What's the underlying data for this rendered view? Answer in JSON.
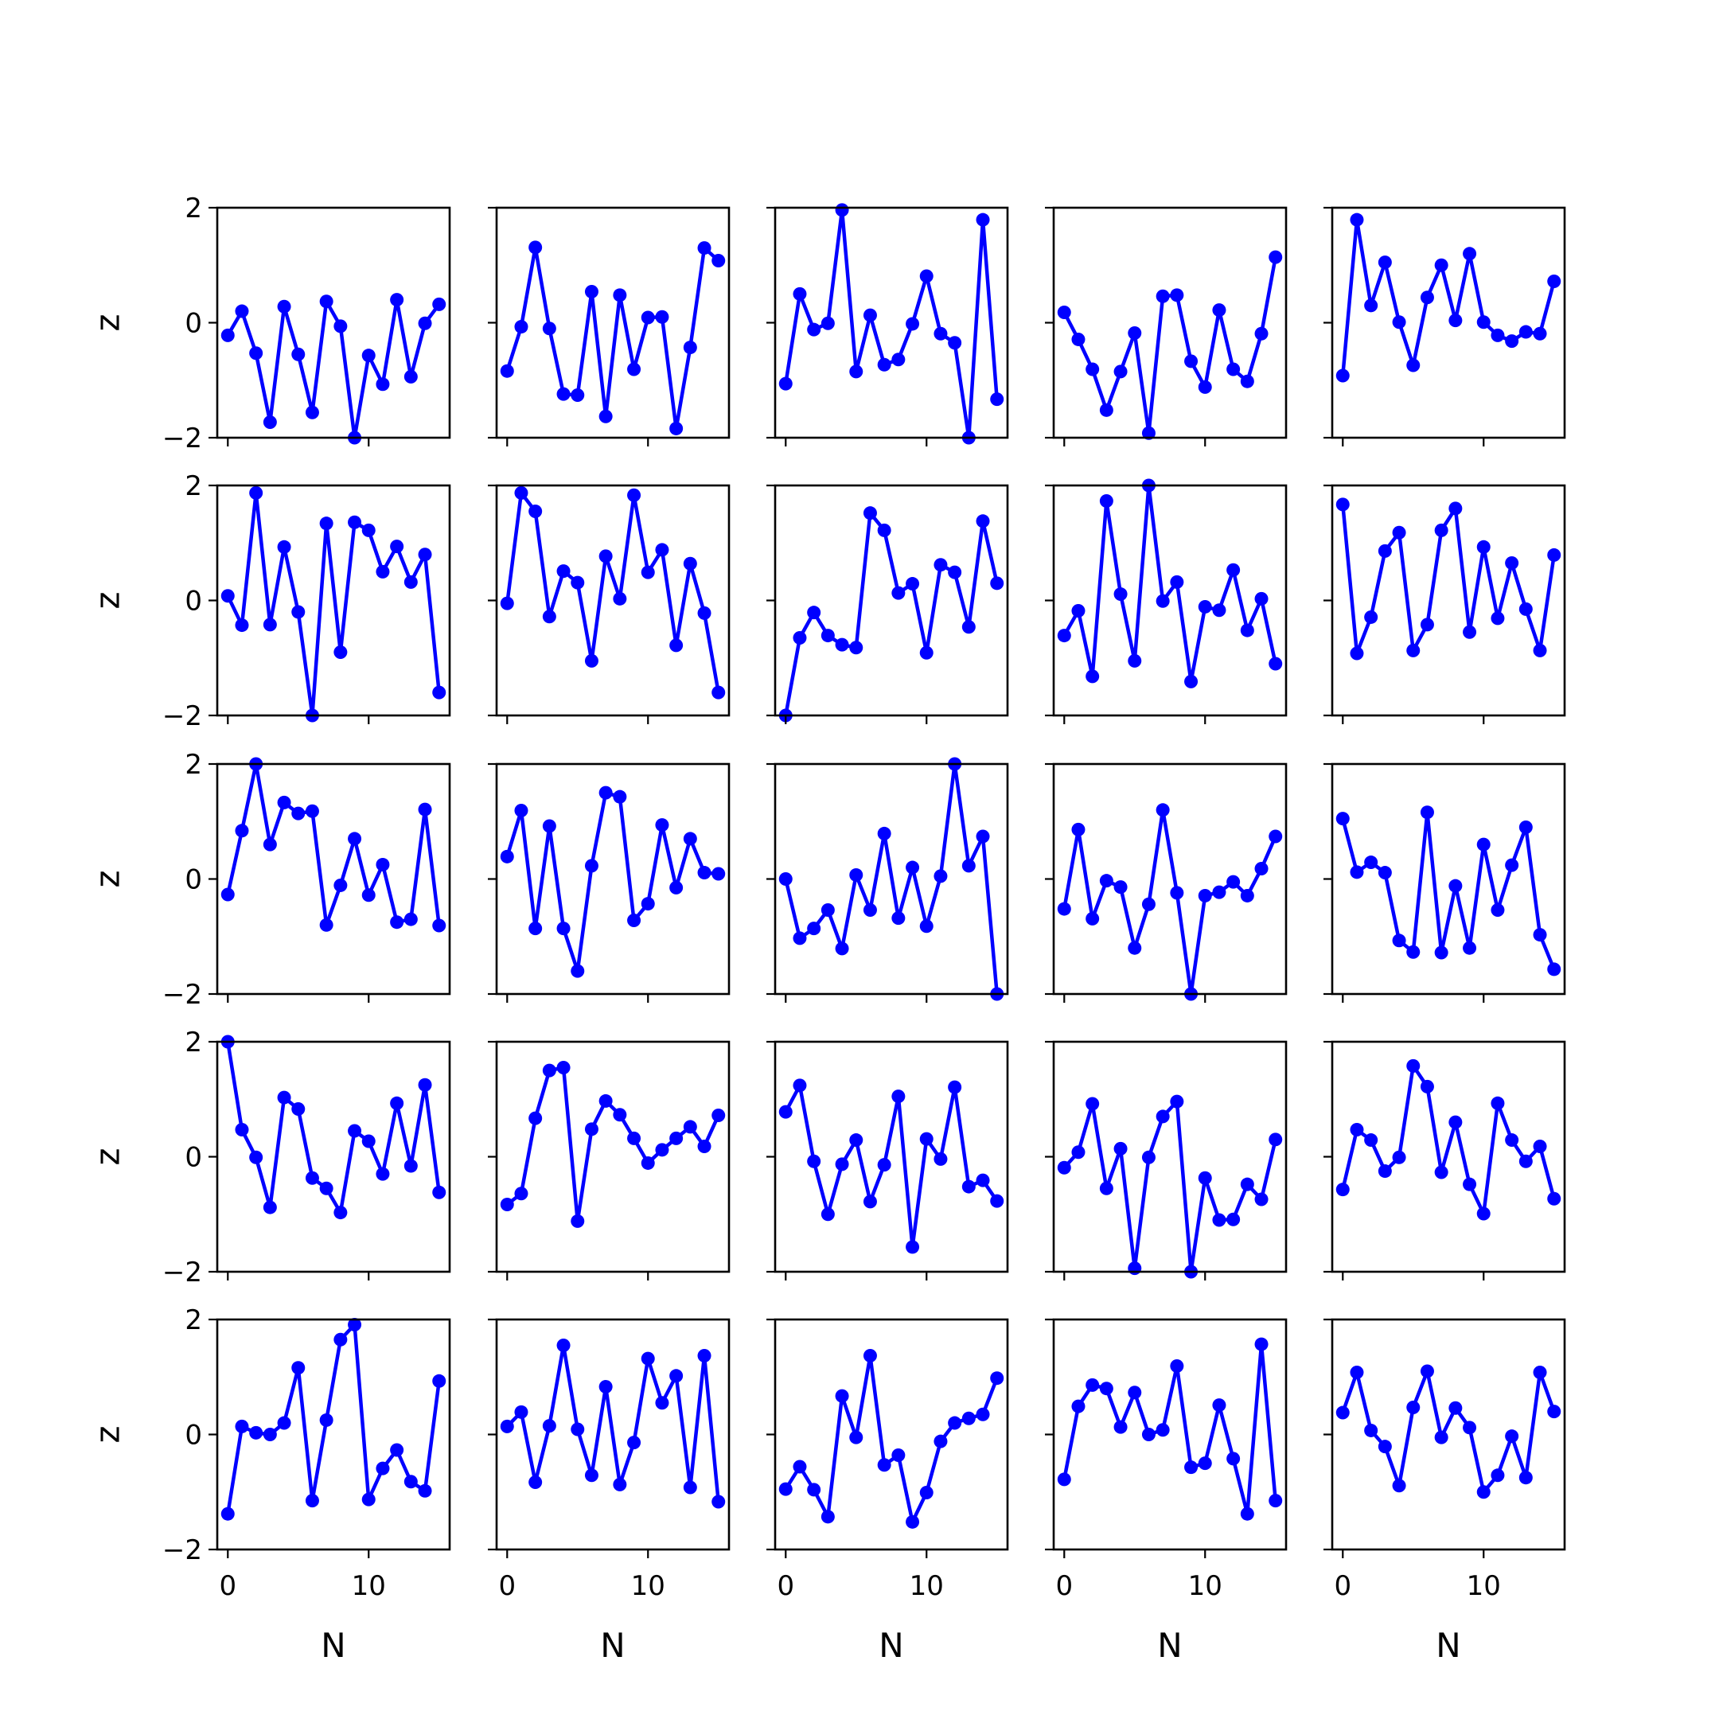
{
  "figure": {
    "rows": 5,
    "cols": 5,
    "line_color": "#0000ff"
  },
  "chart_data": {
    "type": "line",
    "grid": false,
    "xlabel": "N",
    "ylabel": "z",
    "xlim": [
      -0.75,
      15.75
    ],
    "ylim": [
      -2,
      2
    ],
    "xticks": [
      0,
      10
    ],
    "yticks": [
      -2,
      0,
      2
    ],
    "x": [
      0,
      1,
      2,
      3,
      4,
      5,
      6,
      7,
      8,
      9,
      10,
      11,
      12,
      13,
      14,
      15
    ],
    "panels": [
      {
        "values": [
          -0.22,
          0.2,
          -0.53,
          -1.73,
          0.28,
          -0.55,
          -1.56,
          0.37,
          -0.06,
          -2.0,
          -0.57,
          -1.07,
          0.4,
          -0.94,
          -0.01,
          0.32
        ]
      },
      {
        "values": [
          -0.84,
          -0.07,
          1.31,
          -0.1,
          -1.24,
          -1.26,
          0.54,
          -1.63,
          0.48,
          -0.81,
          0.09,
          0.1,
          -1.84,
          -0.43,
          1.3,
          1.08
        ]
      },
      {
        "values": [
          -1.06,
          0.5,
          -0.12,
          -0.01,
          1.96,
          -0.85,
          0.13,
          -0.73,
          -0.64,
          -0.02,
          0.81,
          -0.19,
          -0.35,
          -2.0,
          1.79,
          -1.33
        ]
      },
      {
        "values": [
          0.18,
          -0.29,
          -0.81,
          -1.52,
          -0.85,
          -0.18,
          -1.92,
          0.46,
          0.48,
          -0.67,
          -1.12,
          0.22,
          -0.81,
          -1.02,
          -0.19,
          1.14
        ]
      },
      {
        "values": [
          -0.92,
          1.79,
          0.3,
          1.05,
          0.01,
          -0.74,
          0.44,
          1.0,
          0.04,
          1.2,
          0.01,
          -0.22,
          -0.32,
          -0.16,
          -0.19,
          0.72
        ]
      },
      {
        "values": [
          0.08,
          -0.43,
          1.87,
          -0.42,
          0.93,
          -0.2,
          -2.0,
          1.34,
          -0.9,
          1.36,
          1.22,
          0.5,
          0.94,
          0.32,
          0.8,
          -1.6
        ]
      },
      {
        "values": [
          -0.05,
          1.87,
          1.55,
          -0.28,
          0.51,
          0.31,
          -1.05,
          0.77,
          0.03,
          1.83,
          0.49,
          0.88,
          -0.78,
          0.64,
          -0.22,
          -1.6
        ]
      },
      {
        "values": [
          -2.0,
          -0.65,
          -0.21,
          -0.61,
          -0.77,
          -0.82,
          1.52,
          1.22,
          0.13,
          0.29,
          -0.91,
          0.62,
          0.49,
          -0.46,
          1.38,
          0.3
        ]
      },
      {
        "values": [
          -0.61,
          -0.18,
          -1.32,
          1.73,
          0.11,
          -1.05,
          2.0,
          -0.01,
          0.32,
          -1.41,
          -0.11,
          -0.17,
          0.53,
          -0.52,
          0.03,
          -1.1
        ]
      },
      {
        "values": [
          1.67,
          -0.92,
          -0.29,
          0.86,
          1.18,
          -0.87,
          -0.42,
          1.22,
          1.6,
          -0.55,
          0.93,
          -0.31,
          0.65,
          -0.15,
          -0.87,
          0.79
        ]
      },
      {
        "values": [
          -0.27,
          0.84,
          2.0,
          0.6,
          1.33,
          1.14,
          1.18,
          -0.8,
          -0.11,
          0.7,
          -0.28,
          0.25,
          -0.75,
          -0.7,
          1.21,
          -0.81
        ]
      },
      {
        "values": [
          0.39,
          1.19,
          -0.86,
          0.92,
          -0.86,
          -1.6,
          0.23,
          1.5,
          1.43,
          -0.72,
          -0.43,
          0.94,
          -0.15,
          0.7,
          0.11,
          0.09
        ]
      },
      {
        "values": [
          0.0,
          -1.03,
          -0.86,
          -0.54,
          -1.21,
          0.07,
          -0.54,
          0.79,
          -0.68,
          0.2,
          -0.82,
          0.05,
          2.0,
          0.23,
          0.74,
          -2.0
        ]
      },
      {
        "values": [
          -0.52,
          0.86,
          -0.69,
          -0.03,
          -0.14,
          -1.2,
          -0.44,
          1.2,
          -0.24,
          -2.0,
          -0.29,
          -0.23,
          -0.05,
          -0.29,
          0.18,
          0.74
        ]
      },
      {
        "values": [
          1.05,
          0.12,
          0.29,
          0.11,
          -1.07,
          -1.27,
          1.16,
          -1.28,
          -0.12,
          -1.2,
          0.6,
          -0.54,
          0.24,
          0.9,
          -0.97,
          -1.57
        ]
      },
      {
        "values": [
          2.0,
          0.47,
          -0.01,
          -0.88,
          1.03,
          0.83,
          -0.37,
          -0.55,
          -0.97,
          0.45,
          0.27,
          -0.3,
          0.93,
          -0.16,
          1.25,
          -0.62
        ]
      },
      {
        "values": [
          -0.83,
          -0.64,
          0.67,
          1.5,
          1.55,
          -1.12,
          0.48,
          0.97,
          0.73,
          0.32,
          -0.11,
          0.12,
          0.32,
          0.52,
          0.18,
          0.72
        ]
      },
      {
        "values": [
          0.78,
          1.24,
          -0.08,
          -1.0,
          -0.13,
          0.29,
          -0.78,
          -0.14,
          1.05,
          -1.57,
          0.31,
          -0.04,
          1.21,
          -0.52,
          -0.41,
          -0.77
        ]
      },
      {
        "values": [
          -0.19,
          0.08,
          0.92,
          -0.55,
          0.14,
          -1.94,
          -0.01,
          0.7,
          0.96,
          -2.0,
          -0.37,
          -1.1,
          -1.09,
          -0.48,
          -0.74,
          0.3
        ]
      },
      {
        "values": [
          -0.57,
          0.47,
          0.29,
          -0.25,
          -0.01,
          1.58,
          1.22,
          -0.27,
          0.6,
          -0.48,
          -0.99,
          0.93,
          0.29,
          -0.08,
          0.18,
          -0.73
        ]
      },
      {
        "values": [
          -1.38,
          0.14,
          0.03,
          0.0,
          0.2,
          1.16,
          -1.15,
          0.25,
          1.65,
          1.91,
          -1.13,
          -0.59,
          -0.27,
          -0.82,
          -0.98,
          0.93
        ]
      },
      {
        "values": [
          0.14,
          0.39,
          -0.83,
          0.15,
          1.55,
          0.09,
          -0.71,
          0.83,
          -0.87,
          -0.14,
          1.32,
          0.55,
          1.02,
          -0.92,
          1.37,
          -1.17
        ]
      },
      {
        "values": [
          -0.95,
          -0.56,
          -0.96,
          -1.43,
          0.67,
          -0.05,
          1.37,
          -0.53,
          -0.36,
          -1.52,
          -1.01,
          -0.12,
          0.2,
          0.28,
          0.35,
          0.98
        ]
      },
      {
        "values": [
          -0.78,
          0.49,
          0.86,
          0.8,
          0.13,
          0.73,
          0.0,
          0.08,
          1.19,
          -0.57,
          -0.5,
          0.51,
          -0.42,
          -1.38,
          1.57,
          -1.15
        ]
      },
      {
        "values": [
          0.38,
          1.08,
          0.07,
          -0.21,
          -0.89,
          0.47,
          1.1,
          -0.05,
          0.46,
          0.12,
          -1.0,
          -0.71,
          -0.03,
          -0.75,
          1.08,
          0.4
        ]
      }
    ]
  }
}
